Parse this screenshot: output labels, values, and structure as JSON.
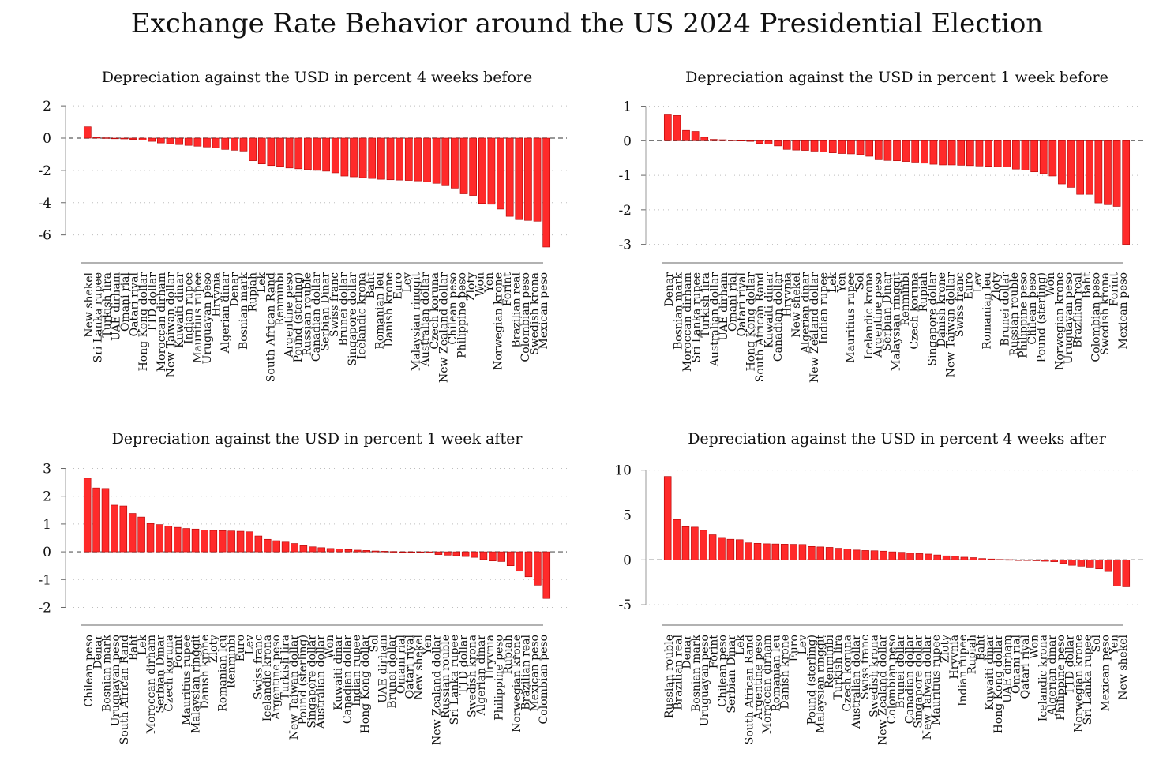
{
  "title": "Exchange Rate Behavior around the US 2024 Presidential Election",
  "colors": {
    "bar_fill": "#ff2a2a",
    "bar_stroke": "#b00000",
    "grid": "#bdbdbd",
    "zero_line": "#777777",
    "axis": "#999999"
  },
  "chart_data": [
    {
      "type": "bar",
      "title": "Depreciation against the USD in percent 4 weeks before",
      "ylim": [
        -6.8,
        2.3
      ],
      "yticks": [
        2,
        0,
        -2,
        -4,
        -6
      ],
      "grid": true,
      "categories": [
        "New shekel",
        "Sri Lanka rupee",
        "Turkish lira",
        "UAE dirham",
        "Omani rial",
        "Qatari riyal",
        "Hong Kong dollar",
        "TTD dollar",
        "Moroccan dirham",
        "New Taiwan dollar",
        "Kuwaiti dinar",
        "Indian rupee",
        "Mauritius rupee",
        "Uruguayan peso",
        "Hryvnia",
        "Algerian dinar",
        "Denar",
        "Bosnian mark",
        "Rupiah",
        "Lek",
        "South African Rand",
        "Renminbi",
        "Argentine peso",
        "Pound (sterling)",
        "Russian rouble",
        "Canadian dollar",
        "Serbian Dinar",
        "Swiss franc",
        "Brunei dollar",
        "Singapore dollar",
        "Icelandic krona",
        "Baht",
        "Romanian leu",
        "Danish krone",
        "Euro",
        "Lev",
        "Malaysian ringgit",
        "Australian dollar",
        "Czech koruna",
        "New Zealand dollar",
        "Chilean peso",
        "Philippine peso",
        "Zloty",
        "Won",
        "Yen",
        "Norwegian krone",
        "Forint",
        "Brazilian real",
        "Colombian peso",
        "Swedish krona",
        "Mexican peso"
      ],
      "values": [
        0.7,
        0.05,
        0.02,
        -0.02,
        -0.05,
        -0.08,
        -0.12,
        -0.2,
        -0.3,
        -0.35,
        -0.4,
        -0.45,
        -0.5,
        -0.55,
        -0.6,
        -0.7,
        -0.75,
        -0.8,
        -1.4,
        -1.6,
        -1.7,
        -1.75,
        -1.85,
        -1.9,
        -1.95,
        -2.0,
        -2.05,
        -2.15,
        -2.35,
        -2.4,
        -2.45,
        -2.5,
        -2.55,
        -2.58,
        -2.6,
        -2.62,
        -2.65,
        -2.7,
        -2.8,
        -2.95,
        -3.1,
        -3.45,
        -3.55,
        -4.05,
        -4.1,
        -4.4,
        -4.85,
        -5.05,
        -5.1,
        -5.15,
        -6.75
      ]
    },
    {
      "type": "bar",
      "title": "Depreciation against the USD in percent 1 week before",
      "ylim": [
        -3.1,
        1.15
      ],
      "yticks": [
        1,
        0,
        -1,
        -2,
        -3
      ],
      "grid": true,
      "categories": [
        "Denar",
        "Bosnian mark",
        "Moroccan dirham",
        "Sri Lanka rupee",
        "Turkish lira",
        "Australian dollar",
        "UAE dirham",
        "Omani rial",
        "Qatari riyal",
        "Hong Kong dollar",
        "South African Rand",
        "Kuwaiti dinar",
        "Canadian dollar",
        "Hryvnia",
        "New shekel",
        "Algerian dinar",
        "New Zealand dollar",
        "Indian rupee",
        "Lek",
        "Yen",
        "Mauritius rupee",
        "Sol",
        "Icelandic krona",
        "Argentine peso",
        "Serbian Dinar",
        "Malaysian ringgit",
        "Renminbi",
        "Czech koruna",
        "Rupiah",
        "Singapore dollar",
        "Danish krone",
        "New Taiwan dollar",
        "Swiss franc",
        "Euro",
        "Lev",
        "Romanian leu",
        "Zloty",
        "Brunei dollar",
        "Russian rouble",
        "Philippine peso",
        "Chilean peso",
        "Pound (sterling)",
        "Won",
        "Norwegian krone",
        "Uruguayan peso",
        "Brazilian real",
        "Baht",
        "Colombian peso",
        "Swedish krona",
        "Forint",
        "Mexican peso"
      ],
      "values": [
        0.75,
        0.73,
        0.3,
        0.27,
        0.1,
        0.04,
        0.03,
        0.02,
        0.01,
        0.0,
        -0.08,
        -0.1,
        -0.15,
        -0.25,
        -0.27,
        -0.28,
        -0.3,
        -0.32,
        -0.35,
        -0.37,
        -0.38,
        -0.4,
        -0.45,
        -0.55,
        -0.57,
        -0.58,
        -0.6,
        -0.62,
        -0.65,
        -0.68,
        -0.7,
        -0.7,
        -0.71,
        -0.72,
        -0.73,
        -0.74,
        -0.75,
        -0.76,
        -0.82,
        -0.85,
        -0.9,
        -0.95,
        -1.02,
        -1.25,
        -1.35,
        -1.55,
        -1.55,
        -1.8,
        -1.85,
        -1.9,
        -3.0
      ]
    },
    {
      "type": "bar",
      "title": "Depreciation against the USD in percent 1 week after",
      "ylim": [
        -2.1,
        3.1
      ],
      "yticks": [
        3,
        2,
        1,
        0,
        -1,
        -2
      ],
      "grid": true,
      "categories": [
        "Chilean peso",
        "Denar",
        "Bosnian mark",
        "Uruguayan peso",
        "South African Rand",
        "Baht",
        "Lek",
        "Moroccan dirham",
        "Serbian Dinar",
        "Czech koruna",
        "Forint",
        "Mauritius rupee",
        "Malaysian ringgit",
        "Danish krone",
        "Zloty",
        "Romanian leu",
        "Renminbi",
        "Euro",
        "Lev",
        "Swiss franc",
        "Icelandic krona",
        "Argentine peso",
        "Turkish lira",
        "New Taiwan dollar",
        "Pound (sterling)",
        "Singapore dollar",
        "Australian dollar",
        "Won",
        "Kuwaiti dinar",
        "Canadian dollar",
        "Indian rupee",
        "Hong Kong dollar",
        "Sol",
        "UAE dirham",
        "Brunei dollar",
        "Omani rial",
        "Qatari riyal",
        "New shekel",
        "Yen",
        "New Zealand dollar",
        "Russian rouble",
        "Sri Lanka rupee",
        "TTD dollar",
        "Swedish krona",
        "Algerian dinar",
        "Hryvnia",
        "Philippine peso",
        "Rupiah",
        "Norwegian krone",
        "Brazilian real",
        "Mexican peso",
        "Colombian peso"
      ],
      "values": [
        2.65,
        2.3,
        2.28,
        1.68,
        1.65,
        1.38,
        1.25,
        1.02,
        0.98,
        0.92,
        0.88,
        0.84,
        0.82,
        0.78,
        0.77,
        0.76,
        0.75,
        0.74,
        0.72,
        0.57,
        0.45,
        0.4,
        0.35,
        0.3,
        0.22,
        0.18,
        0.15,
        0.12,
        0.1,
        0.08,
        0.06,
        0.05,
        0.03,
        0.02,
        0.01,
        0.0,
        -0.01,
        -0.02,
        -0.03,
        -0.1,
        -0.12,
        -0.14,
        -0.17,
        -0.2,
        -0.28,
        -0.33,
        -0.35,
        -0.5,
        -0.7,
        -0.9,
        -1.2,
        -1.68
      ]
    },
    {
      "type": "bar",
      "title": "Depreciation against the USD in percent 4 weeks after",
      "ylim": [
        -5.6,
        10.5
      ],
      "yticks": [
        10,
        5,
        0,
        -5
      ],
      "grid": true,
      "categories": [
        "Russian rouble",
        "Brazilian real",
        "Denar",
        "Bosnian mark",
        "Uruguayan peso",
        "Forint",
        "Chilean peso",
        "Serbian Dinar",
        "Lek",
        "South African Rand",
        "Argentine peso",
        "Moroccan dirham",
        "Romanian leu",
        "Danish krone",
        "Euro",
        "Lev",
        "Pound (sterling)",
        "Malaysian ringgit",
        "Renminbi",
        "Turkish lira",
        "Czech koruna",
        "Australian dollar",
        "Swiss franc",
        "Swedish krona",
        "New Zealand dollar",
        "Colombian peso",
        "Brunei dollar",
        "Canadian dollar",
        "Singapore dollar",
        "New Taiwan dollar",
        "Mauritius rupee",
        "Zloty",
        "Hryvnia",
        "Indian rupee",
        "Rupiah",
        "Baht",
        "Kuwaiti dinar",
        "Hong Kong dollar",
        "UAE dirham",
        "Omani rial",
        "Qatari riyal",
        "Won",
        "Icelandic krona",
        "Algerian dinar",
        "Philippine peso",
        "TTD dollar",
        "Norwegian krone",
        "Sri Lanka rupee",
        "Sol",
        "Mexican peso",
        "Yen",
        "New shekel"
      ],
      "values": [
        9.3,
        4.5,
        3.7,
        3.65,
        3.3,
        2.8,
        2.5,
        2.3,
        2.25,
        1.9,
        1.85,
        1.8,
        1.78,
        1.76,
        1.74,
        1.72,
        1.5,
        1.45,
        1.4,
        1.3,
        1.2,
        1.1,
        1.05,
        1.02,
        0.98,
        0.9,
        0.85,
        0.75,
        0.7,
        0.65,
        0.55,
        0.45,
        0.4,
        0.3,
        0.25,
        0.15,
        0.1,
        0.05,
        0.03,
        0.0,
        -0.05,
        -0.1,
        -0.15,
        -0.2,
        -0.4,
        -0.6,
        -0.7,
        -0.8,
        -1.0,
        -1.3,
        -2.9,
        -3.0
      ]
    }
  ]
}
